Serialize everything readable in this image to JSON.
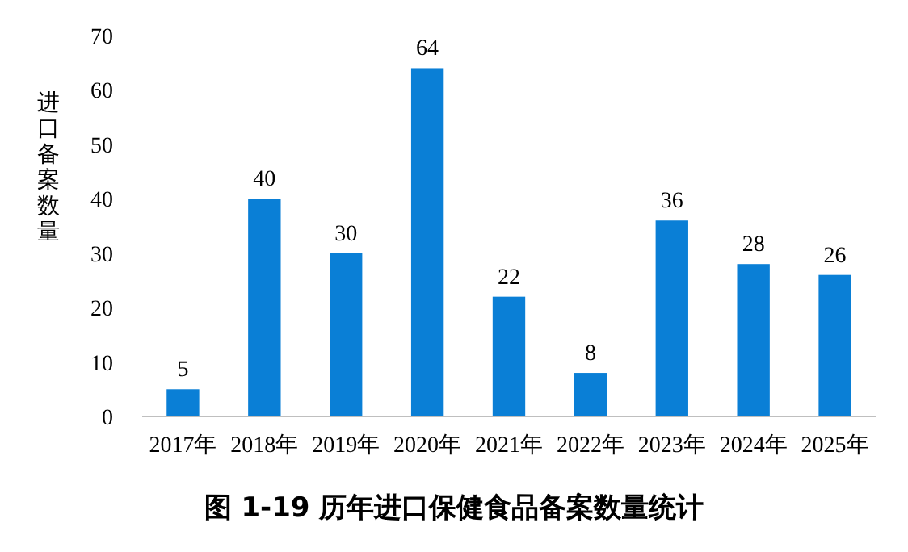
{
  "chart_data": {
    "type": "bar",
    "title": "图 1-19 历年进口保健食品备案数量统计",
    "ylabel": "进口备案数量",
    "categories": [
      "2017年",
      "2018年",
      "2019年",
      "2020年",
      "2021年",
      "2022年",
      "2023年",
      "2024年",
      "2025年"
    ],
    "values": [
      5,
      40,
      30,
      64,
      22,
      8,
      36,
      28,
      26
    ],
    "color": "#0a7fd6",
    "ylim": [
      0,
      70
    ],
    "yticks": [
      0,
      10,
      20,
      30,
      40,
      50,
      60,
      70
    ],
    "grid": false,
    "data_labels": true
  }
}
